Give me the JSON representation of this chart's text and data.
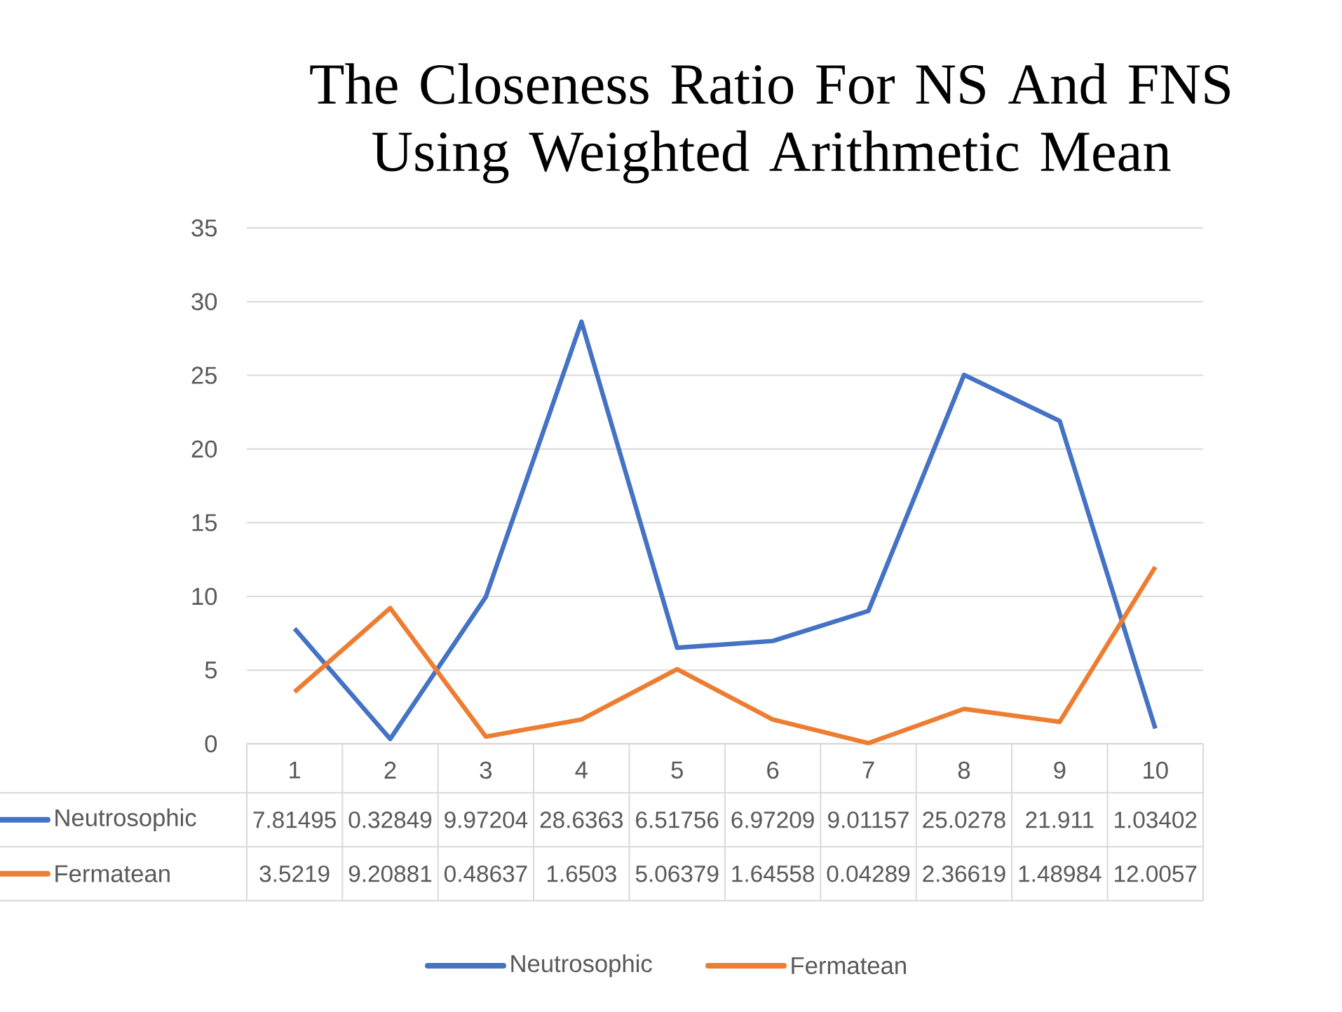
{
  "chart_data": {
    "type": "line",
    "title": "The Closeness Ratio For NS And FNS Using Weighted Arithmetic Mean",
    "categories": [
      "1",
      "2",
      "3",
      "4",
      "5",
      "6",
      "7",
      "8",
      "9",
      "10"
    ],
    "series": [
      {
        "name": "Neutrosophic",
        "color": "#4472c4",
        "values": [
          7.81495,
          0.32849,
          9.97204,
          28.6363,
          6.51756,
          6.97209,
          9.01157,
          25.0278,
          21.911,
          1.03402
        ],
        "value_labels": [
          "7.81495",
          "0.32849",
          "9.97204",
          "28.6363",
          "6.51756",
          "6.97209",
          "9.01157",
          "25.0278",
          "21.911",
          "1.03402"
        ]
      },
      {
        "name": "Fermatean",
        "color": "#ed7d31",
        "values": [
          3.5219,
          9.20881,
          0.48637,
          1.6503,
          5.06379,
          1.64558,
          0.04289,
          2.36619,
          1.48984,
          12.0057
        ],
        "value_labels": [
          "3.5219",
          "9.20881",
          "0.48637",
          "1.6503",
          "5.06379",
          "1.64558",
          "0.04289",
          "2.36619",
          "1.48984",
          "12.0057"
        ]
      }
    ],
    "ylim": [
      0,
      35
    ],
    "yticks": [
      0,
      5,
      10,
      15,
      20,
      25,
      30,
      35
    ],
    "grid": "y",
    "legend": "bottom",
    "marker": "none",
    "line_style": "solid"
  }
}
